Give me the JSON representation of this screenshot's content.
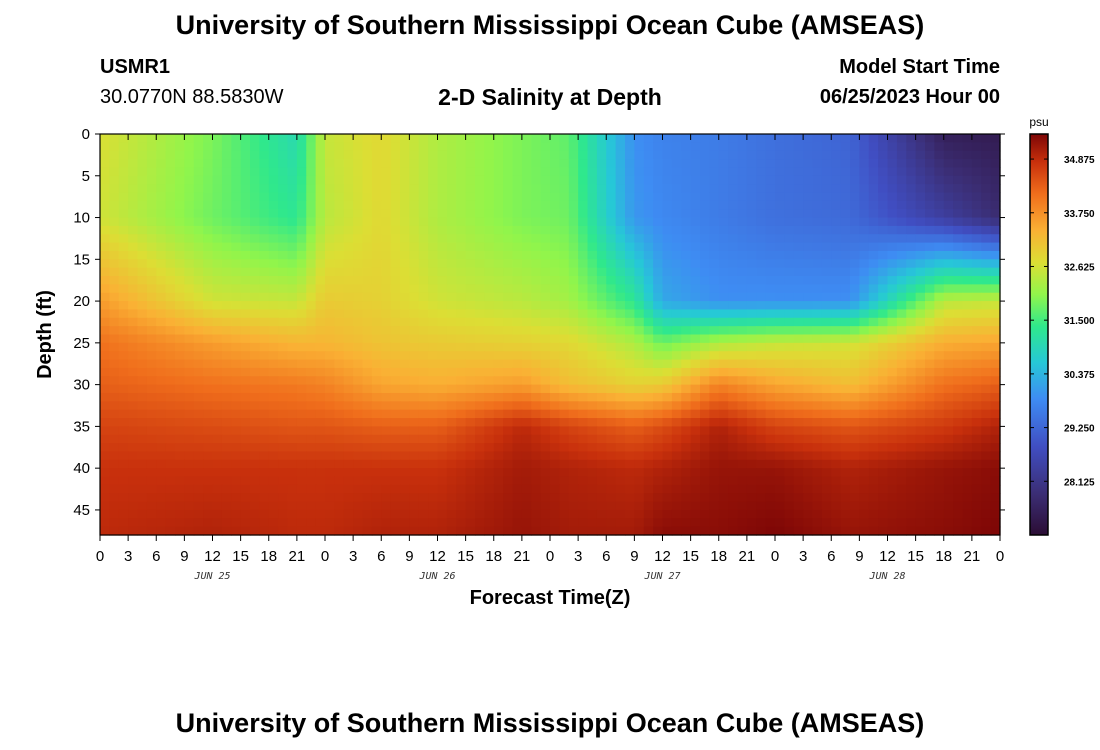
{
  "header": {
    "title": "University of Southern Mississippi Ocean Cube (AMSEAS)",
    "station_id": "USMR1",
    "coords": "30.0770N  88.5830W",
    "chart_title": "2-D Salinity at Depth",
    "model_start_label": "Model Start Time",
    "model_start_value": "06/25/2023 Hour 00"
  },
  "footer": {
    "title": "University of Southern Mississippi Ocean Cube (AMSEAS)"
  },
  "chart_data": {
    "type": "heatmap",
    "title": "2-D Salinity at Depth",
    "xlabel": "Forecast Time(Z)",
    "ylabel": "Depth (ft)",
    "x_hours": [
      0,
      3,
      6,
      9,
      12,
      15,
      18,
      21,
      24,
      27,
      30,
      33,
      36,
      39,
      42,
      45,
      48,
      51,
      54,
      57,
      60,
      63,
      66,
      69,
      72,
      75,
      78,
      81,
      84,
      87,
      90,
      93,
      96
    ],
    "x_tick_labels": [
      "0",
      "3",
      "6",
      "9",
      "12",
      "15",
      "18",
      "21",
      "0",
      "3",
      "6",
      "9",
      "12",
      "15",
      "18",
      "21",
      "0",
      "3",
      "6",
      "9",
      "12",
      "15",
      "18",
      "21",
      "0",
      "3",
      "6",
      "9",
      "12",
      "15",
      "18",
      "21",
      "0"
    ],
    "xlim": [
      0,
      96
    ],
    "date_labels": [
      {
        "hour": 12,
        "text": "JUN 25"
      },
      {
        "hour": 36,
        "text": "JUN 26"
      },
      {
        "hour": 60,
        "text": "JUN 27"
      },
      {
        "hour": 84,
        "text": "JUN 28"
      }
    ],
    "depth_ticks": [
      0,
      5,
      10,
      15,
      20,
      25,
      30,
      35,
      40,
      45
    ],
    "ylim": [
      0,
      48
    ],
    "colorbar": {
      "unit": "psu",
      "range": [
        27.0,
        35.4
      ],
      "ticks": [
        "34.875",
        "33.750",
        "32.625",
        "31.500",
        "30.375",
        "29.250",
        "28.125"
      ]
    },
    "depth_levels": [
      0,
      10,
      20,
      25,
      30,
      35,
      40,
      48
    ],
    "salinity_hours": [
      0,
      12,
      21,
      24,
      30,
      36,
      45,
      50,
      57,
      60,
      66,
      72,
      80,
      90,
      96
    ],
    "salinity": [
      [
        32.7,
        31.9,
        31.0,
        32.5,
        32.8,
        32.3,
        31.9,
        31.7,
        29.9,
        29.7,
        29.6,
        29.4,
        29.2,
        27.5,
        27.4
      ],
      [
        32.6,
        31.8,
        31.3,
        32.4,
        32.8,
        32.3,
        31.9,
        31.8,
        30.0,
        29.8,
        29.6,
        29.4,
        29.3,
        28.4,
        27.8
      ],
      [
        33.6,
        32.6,
        32.5,
        33.0,
        32.9,
        32.6,
        32.4,
        32.2,
        31.3,
        30.2,
        29.9,
        29.9,
        29.9,
        32.4,
        32.5
      ],
      [
        34.1,
        33.6,
        33.3,
        33.3,
        33.1,
        33.0,
        32.9,
        32.8,
        32.3,
        31.8,
        32.3,
        32.5,
        32.6,
        33.4,
        33.5
      ],
      [
        34.3,
        34.1,
        34.0,
        33.9,
        33.5,
        33.4,
        33.6,
        33.2,
        32.9,
        33.0,
        33.9,
        33.5,
        33.2,
        34.1,
        34.3
      ],
      [
        34.6,
        34.5,
        34.4,
        34.4,
        34.3,
        34.3,
        34.9,
        34.6,
        34.3,
        34.5,
        35.0,
        34.6,
        34.4,
        34.7,
        35.0
      ],
      [
        34.8,
        34.8,
        34.8,
        34.8,
        34.8,
        34.8,
        35.1,
        35.0,
        34.9,
        35.0,
        35.2,
        35.2,
        35.0,
        35.2,
        35.3
      ],
      [
        34.9,
        35.0,
        34.9,
        34.9,
        35.0,
        35.0,
        35.2,
        35.1,
        35.1,
        35.3,
        35.3,
        35.4,
        35.2,
        35.3,
        35.4
      ]
    ]
  }
}
